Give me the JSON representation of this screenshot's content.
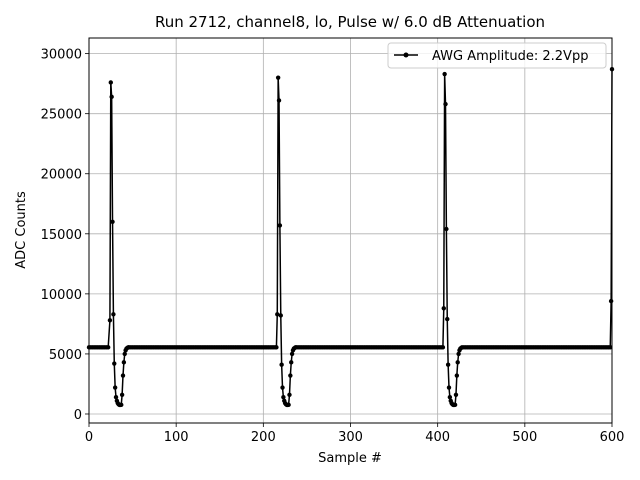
{
  "chart_data": {
    "type": "line",
    "title": "Run 2712, channel8, lo, Pulse w/ 6.0 dB Attenuation",
    "xlabel": "Sample #",
    "ylabel": "ADC Counts",
    "xlim": [
      0,
      600
    ],
    "ylim": [
      -750,
      31300
    ],
    "xticks": [
      0,
      100,
      200,
      300,
      400,
      500,
      600
    ],
    "yticks": [
      0,
      5000,
      10000,
      15000,
      20000,
      25000,
      30000
    ],
    "grid": true,
    "legend_position": "upper right",
    "baseline": 5550,
    "series": [
      {
        "name": "AWG Amplitude: 2.2Vpp",
        "color": "#000000",
        "marker": "circle",
        "points": [
          [
            0,
            5550
          ],
          [
            24,
            7800
          ],
          [
            25,
            27600
          ],
          [
            26,
            26400
          ],
          [
            27,
            16000
          ],
          [
            28,
            8300
          ],
          [
            29,
            4200
          ],
          [
            30,
            2200
          ],
          [
            31,
            1400
          ],
          [
            32,
            1100
          ],
          [
            33,
            900
          ],
          [
            34,
            800
          ],
          [
            35,
            750
          ],
          [
            36,
            750
          ],
          [
            37,
            760
          ],
          [
            38,
            1600
          ],
          [
            39,
            3200
          ],
          [
            40,
            4300
          ],
          [
            41,
            5000
          ],
          [
            42,
            5300
          ],
          [
            43,
            5450
          ],
          [
            44,
            5500
          ],
          [
            45,
            5550
          ],
          [
            215,
            5550
          ],
          [
            216,
            8300
          ],
          [
            217,
            28000
          ],
          [
            218,
            26100
          ],
          [
            219,
            15700
          ],
          [
            220,
            8200
          ],
          [
            221,
            4100
          ],
          [
            222,
            2200
          ],
          [
            223,
            1400
          ],
          [
            224,
            1100
          ],
          [
            225,
            900
          ],
          [
            226,
            800
          ],
          [
            227,
            750
          ],
          [
            228,
            750
          ],
          [
            229,
            760
          ],
          [
            230,
            1600
          ],
          [
            231,
            3200
          ],
          [
            232,
            4300
          ],
          [
            233,
            5000
          ],
          [
            234,
            5300
          ],
          [
            235,
            5450
          ],
          [
            236,
            5500
          ],
          [
            237,
            5550
          ],
          [
            406,
            5550
          ],
          [
            407,
            8800
          ],
          [
            408,
            28300
          ],
          [
            409,
            25800
          ],
          [
            410,
            15400
          ],
          [
            411,
            7900
          ],
          [
            412,
            4100
          ],
          [
            413,
            2200
          ],
          [
            414,
            1400
          ],
          [
            415,
            1100
          ],
          [
            416,
            900
          ],
          [
            417,
            800
          ],
          [
            418,
            750
          ],
          [
            419,
            750
          ],
          [
            420,
            760
          ],
          [
            421,
            1600
          ],
          [
            422,
            3200
          ],
          [
            423,
            4300
          ],
          [
            424,
            5000
          ],
          [
            425,
            5300
          ],
          [
            426,
            5450
          ],
          [
            427,
            5500
          ],
          [
            428,
            5550
          ],
          [
            598,
            5550
          ],
          [
            599,
            9400
          ],
          [
            600,
            28700
          ]
        ]
      }
    ]
  }
}
